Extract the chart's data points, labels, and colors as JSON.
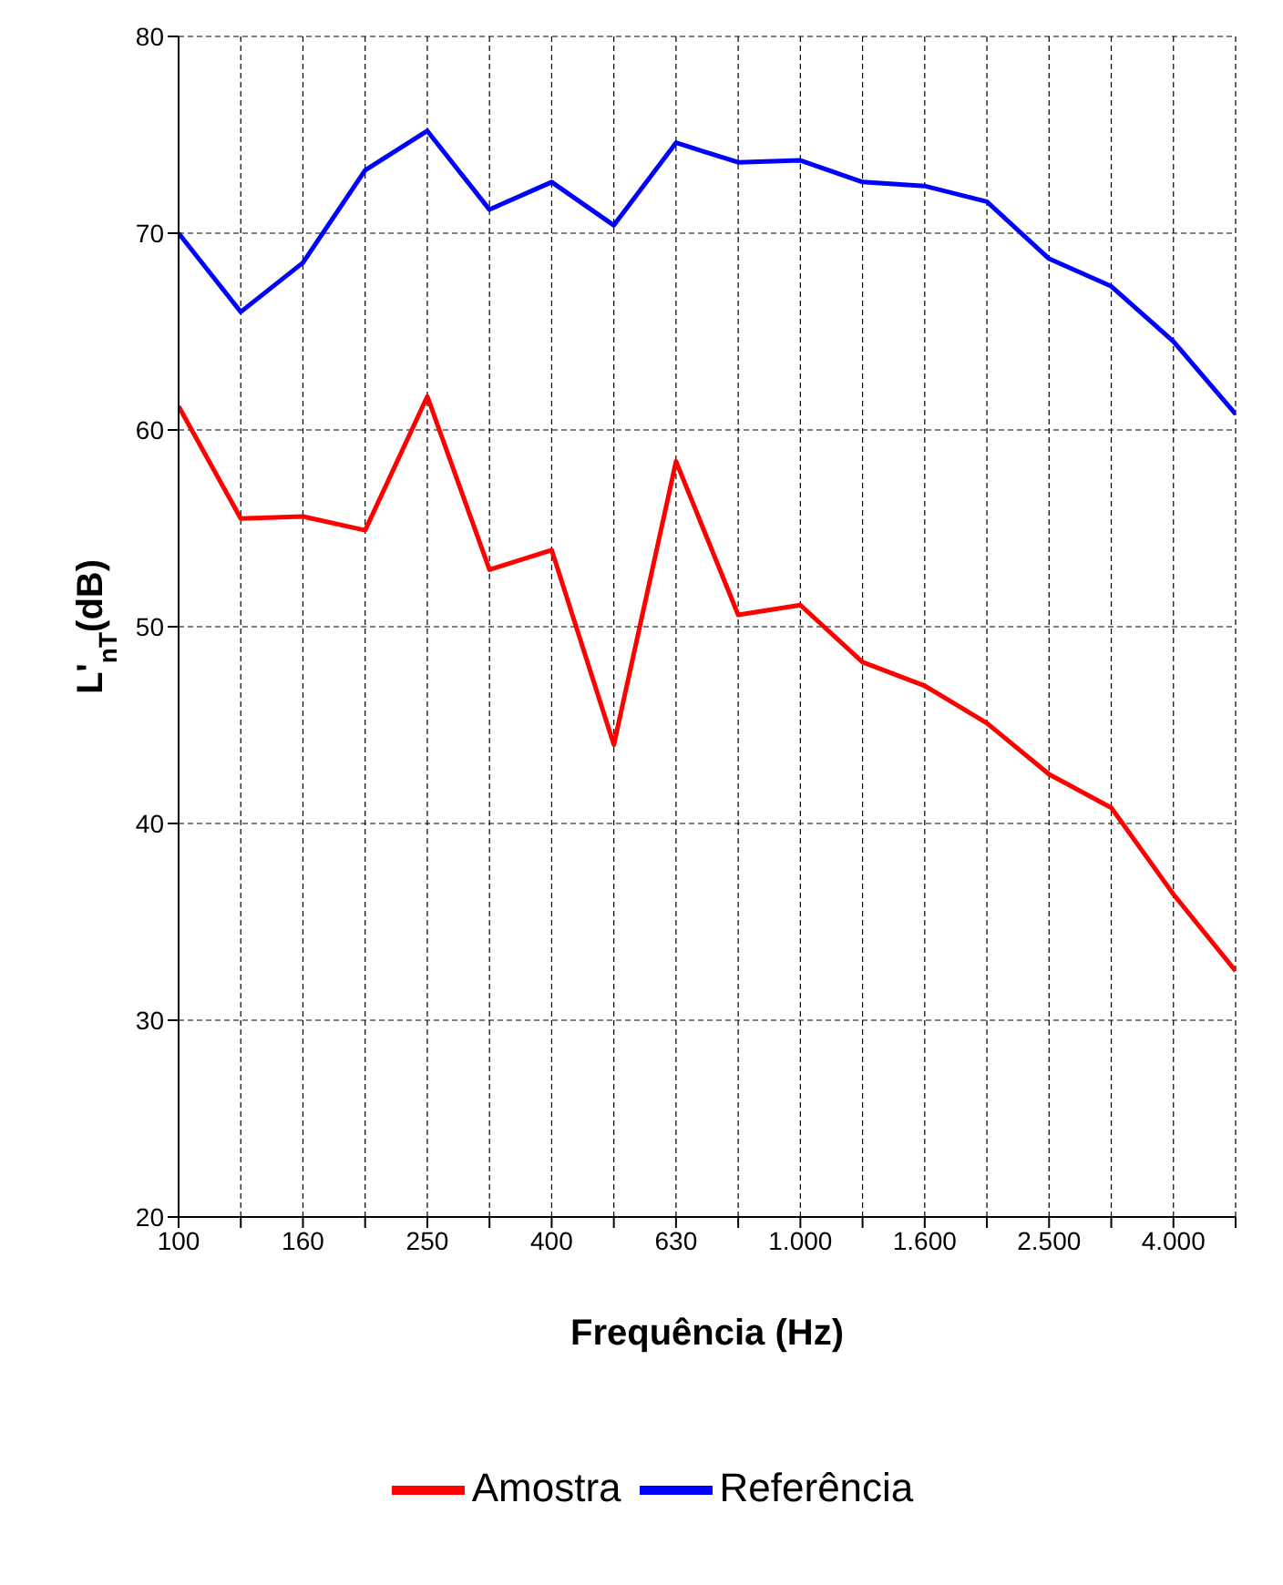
{
  "chart_data": {
    "type": "line",
    "xlabel": "Frequência (Hz)",
    "ylabel": "L'$_{nT}$(dB)",
    "categories": [
      "100",
      null,
      "160",
      null,
      "250",
      null,
      "400",
      null,
      "630",
      null,
      "1.000",
      null,
      "1.600",
      null,
      "2.500",
      null,
      "4.000",
      null
    ],
    "series": [
      {
        "name": "Referência",
        "color": "#0000ff",
        "values": [
          70,
          66.0,
          68.5,
          73.2,
          75.2,
          71.2,
          72.6,
          70.4,
          74.6,
          73.6,
          73.7,
          72.6,
          72.4,
          71.6,
          68.7,
          67.3,
          64.5,
          60.8
        ]
      },
      {
        "name": "Amostra",
        "color": "#ff0000",
        "values": [
          61.2,
          55.5,
          55.6,
          54.9,
          61.7,
          52.9,
          53.9,
          44.0,
          58.4,
          50.6,
          51.1,
          48.2,
          47.0,
          45.1,
          42.5,
          40.8,
          36.4,
          32.5
        ]
      }
    ],
    "ylim": [
      20,
      80
    ],
    "yticks": [
      20,
      30,
      40,
      50,
      60,
      70,
      80
    ],
    "grid": true,
    "legend": "bottom",
    "marker": "none",
    "line_style": "solid"
  }
}
